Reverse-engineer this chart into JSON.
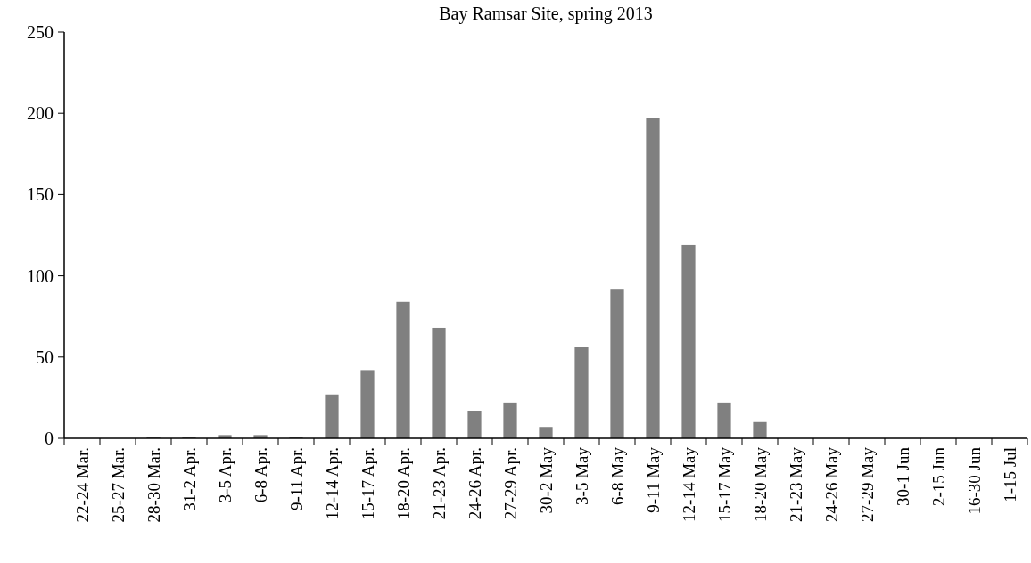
{
  "chart_data": {
    "type": "bar",
    "title": "Bay Ramsar Site, spring 2013",
    "categories": [
      "22-24 Mar.",
      "25-27 Mar.",
      "28-30 Mar.",
      "31-2 Apr.",
      "3-5 Apr.",
      "6-8 Apr.",
      "9-11 Apr.",
      "12-14 Apr.",
      "15-17 Apr.",
      "18-20 Apr.",
      "21-23 Apr.",
      "24-26 Apr.",
      "27-29 Apr.",
      "30-2 May",
      "3-5 May",
      "6-8 May",
      "9-11 May",
      "12-14 May",
      "15-17 May",
      "18-20 May",
      "21-23 May",
      "24-26 May",
      "27-29 May",
      "30-1 Jun",
      "2-15 Jun",
      "16-30 Jun",
      "1-15 Jul"
    ],
    "values": [
      0,
      0,
      1,
      1,
      2,
      2,
      1,
      27,
      42,
      84,
      68,
      17,
      22,
      7,
      56,
      92,
      197,
      119,
      22,
      10,
      0,
      0,
      0,
      0,
      0,
      0,
      0
    ],
    "color": "#808080",
    "ylim": [
      0,
      250
    ],
    "yticks": [
      0,
      50,
      100,
      150,
      200,
      250
    ]
  }
}
